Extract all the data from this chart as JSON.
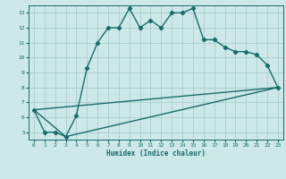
{
  "xlabel": "Humidex (Indice chaleur)",
  "ylabel": "",
  "bg_color": "#cce8e8",
  "grid_color": "#aacece",
  "line_color": "#1a6b6b",
  "xlim": [
    -0.5,
    23.5
  ],
  "ylim": [
    4.5,
    13.5
  ],
  "xticks": [
    0,
    1,
    2,
    3,
    4,
    5,
    6,
    7,
    8,
    9,
    10,
    11,
    12,
    13,
    14,
    15,
    16,
    17,
    18,
    19,
    20,
    21,
    22,
    23
  ],
  "yticks": [
    5,
    6,
    7,
    8,
    9,
    10,
    11,
    12,
    13
  ],
  "curve1_x": [
    0,
    1,
    2,
    3,
    4,
    5,
    6,
    7,
    8,
    9,
    10,
    11,
    12,
    13,
    14,
    15,
    16,
    17,
    18,
    19,
    20,
    21,
    22,
    23
  ],
  "curve1_y": [
    6.5,
    5.0,
    5.0,
    4.7,
    6.1,
    9.3,
    11.0,
    12.0,
    12.0,
    13.3,
    12.0,
    12.5,
    12.0,
    13.0,
    13.0,
    13.3,
    11.2,
    11.2,
    10.7,
    10.4,
    10.4,
    10.2,
    9.5,
    8.0
  ],
  "curve2_x": [
    0,
    3,
    23
  ],
  "curve2_y": [
    6.5,
    4.7,
    8.0
  ],
  "curve3_x": [
    0,
    23
  ],
  "curve3_y": [
    6.5,
    8.0
  ],
  "marker": "D",
  "marker_size": 2.2,
  "line_width": 1.0
}
